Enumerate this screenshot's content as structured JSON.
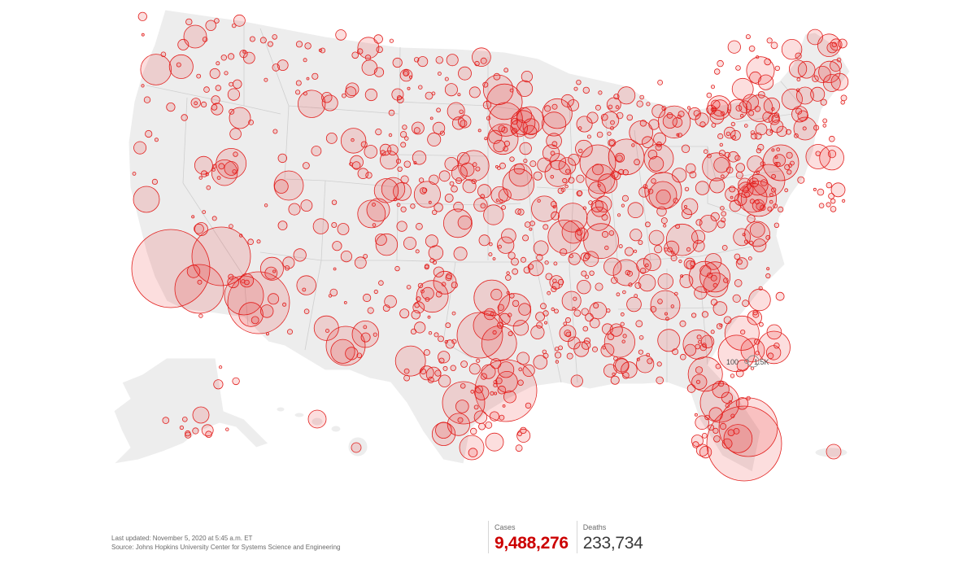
{
  "legend": {
    "small_label": "100",
    "large_label": "1.5K"
  },
  "footer": {
    "last_updated": "Last updated: November 5, 2020 at 5:45 a.m. ET",
    "source": "Source: Johns Hopkins University Center for Systems Science and Engineering"
  },
  "stats": {
    "cases_label": "Cases",
    "cases_value": "9,488,276",
    "deaths_label": "Deaths",
    "deaths_value": "233,734"
  },
  "colors": {
    "bubble_stroke": "#e2201e",
    "cases": "#cc0000",
    "land": "#ededed"
  }
}
